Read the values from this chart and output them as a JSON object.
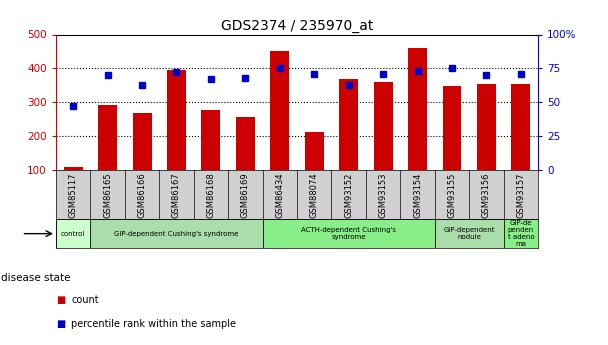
{
  "title": "GDS2374 / 235970_at",
  "samples": [
    "GSM85117",
    "GSM86165",
    "GSM86166",
    "GSM86167",
    "GSM86168",
    "GSM86169",
    "GSM86434",
    "GSM88074",
    "GSM93152",
    "GSM93153",
    "GSM93154",
    "GSM93155",
    "GSM93156",
    "GSM93157"
  ],
  "counts": [
    108,
    291,
    267,
    395,
    278,
    256,
    450,
    212,
    367,
    360,
    460,
    348,
    354,
    354
  ],
  "percentiles": [
    47,
    70,
    63,
    72,
    67,
    68,
    75,
    71,
    63,
    71,
    73,
    75,
    70,
    71
  ],
  "bar_color": "#cc0000",
  "dot_color": "#0000cc",
  "ylim_left": [
    100,
    500
  ],
  "ylim_right": [
    0,
    100
  ],
  "yticks_left": [
    100,
    200,
    300,
    400,
    500
  ],
  "yticks_right": [
    0,
    25,
    50,
    75,
    100
  ],
  "disease_groups": [
    {
      "label": "control",
      "start": 0,
      "end": 1,
      "color": "#ccffcc"
    },
    {
      "label": "GIP-dependent Cushing's syndrome",
      "start": 1,
      "end": 6,
      "color": "#aaddaa"
    },
    {
      "label": "ACTH-dependent Cushing's\nsyndrome",
      "start": 6,
      "end": 11,
      "color": "#88ee88"
    },
    {
      "label": "GIP-dependent\nnodule",
      "start": 11,
      "end": 13,
      "color": "#aaddaa"
    },
    {
      "label": "GIP-de\npenden\nt adeno\nma",
      "start": 13,
      "end": 14,
      "color": "#88ee88"
    }
  ],
  "legend_items": [
    {
      "label": "count",
      "color": "#cc0000"
    },
    {
      "label": "percentile rank within the sample",
      "color": "#0000cc"
    }
  ],
  "grid_color": "#aaaaaa",
  "tick_color_left": "#cc0000",
  "tick_color_right": "#0000cc",
  "xticklabel_bg": "#d0d0d0",
  "plot_bg": "#ffffff"
}
